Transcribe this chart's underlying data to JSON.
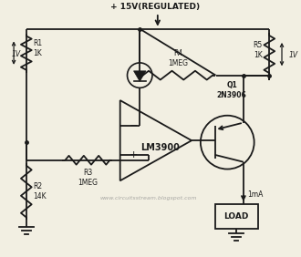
{
  "bg_color": "#f2efe2",
  "line_color": "#1a1a1a",
  "title": "+ 15V(REGULATED)",
  "watermark": "www.circuitsstream.blogspot.com",
  "r1_label": "R1\n1K",
  "r2_label": "R2\n14K",
  "r3_label": "R3\n1MEG",
  "r4_label": "R4\n1MEG",
  "r5_label": "R5\n1K",
  "q1_label": "Q1\n2N3906",
  "opamp_label": "LM3900",
  "load_label": "LOAD",
  "v1_label": "1V",
  "v2_label": "1V",
  "ima_label": "1mA"
}
